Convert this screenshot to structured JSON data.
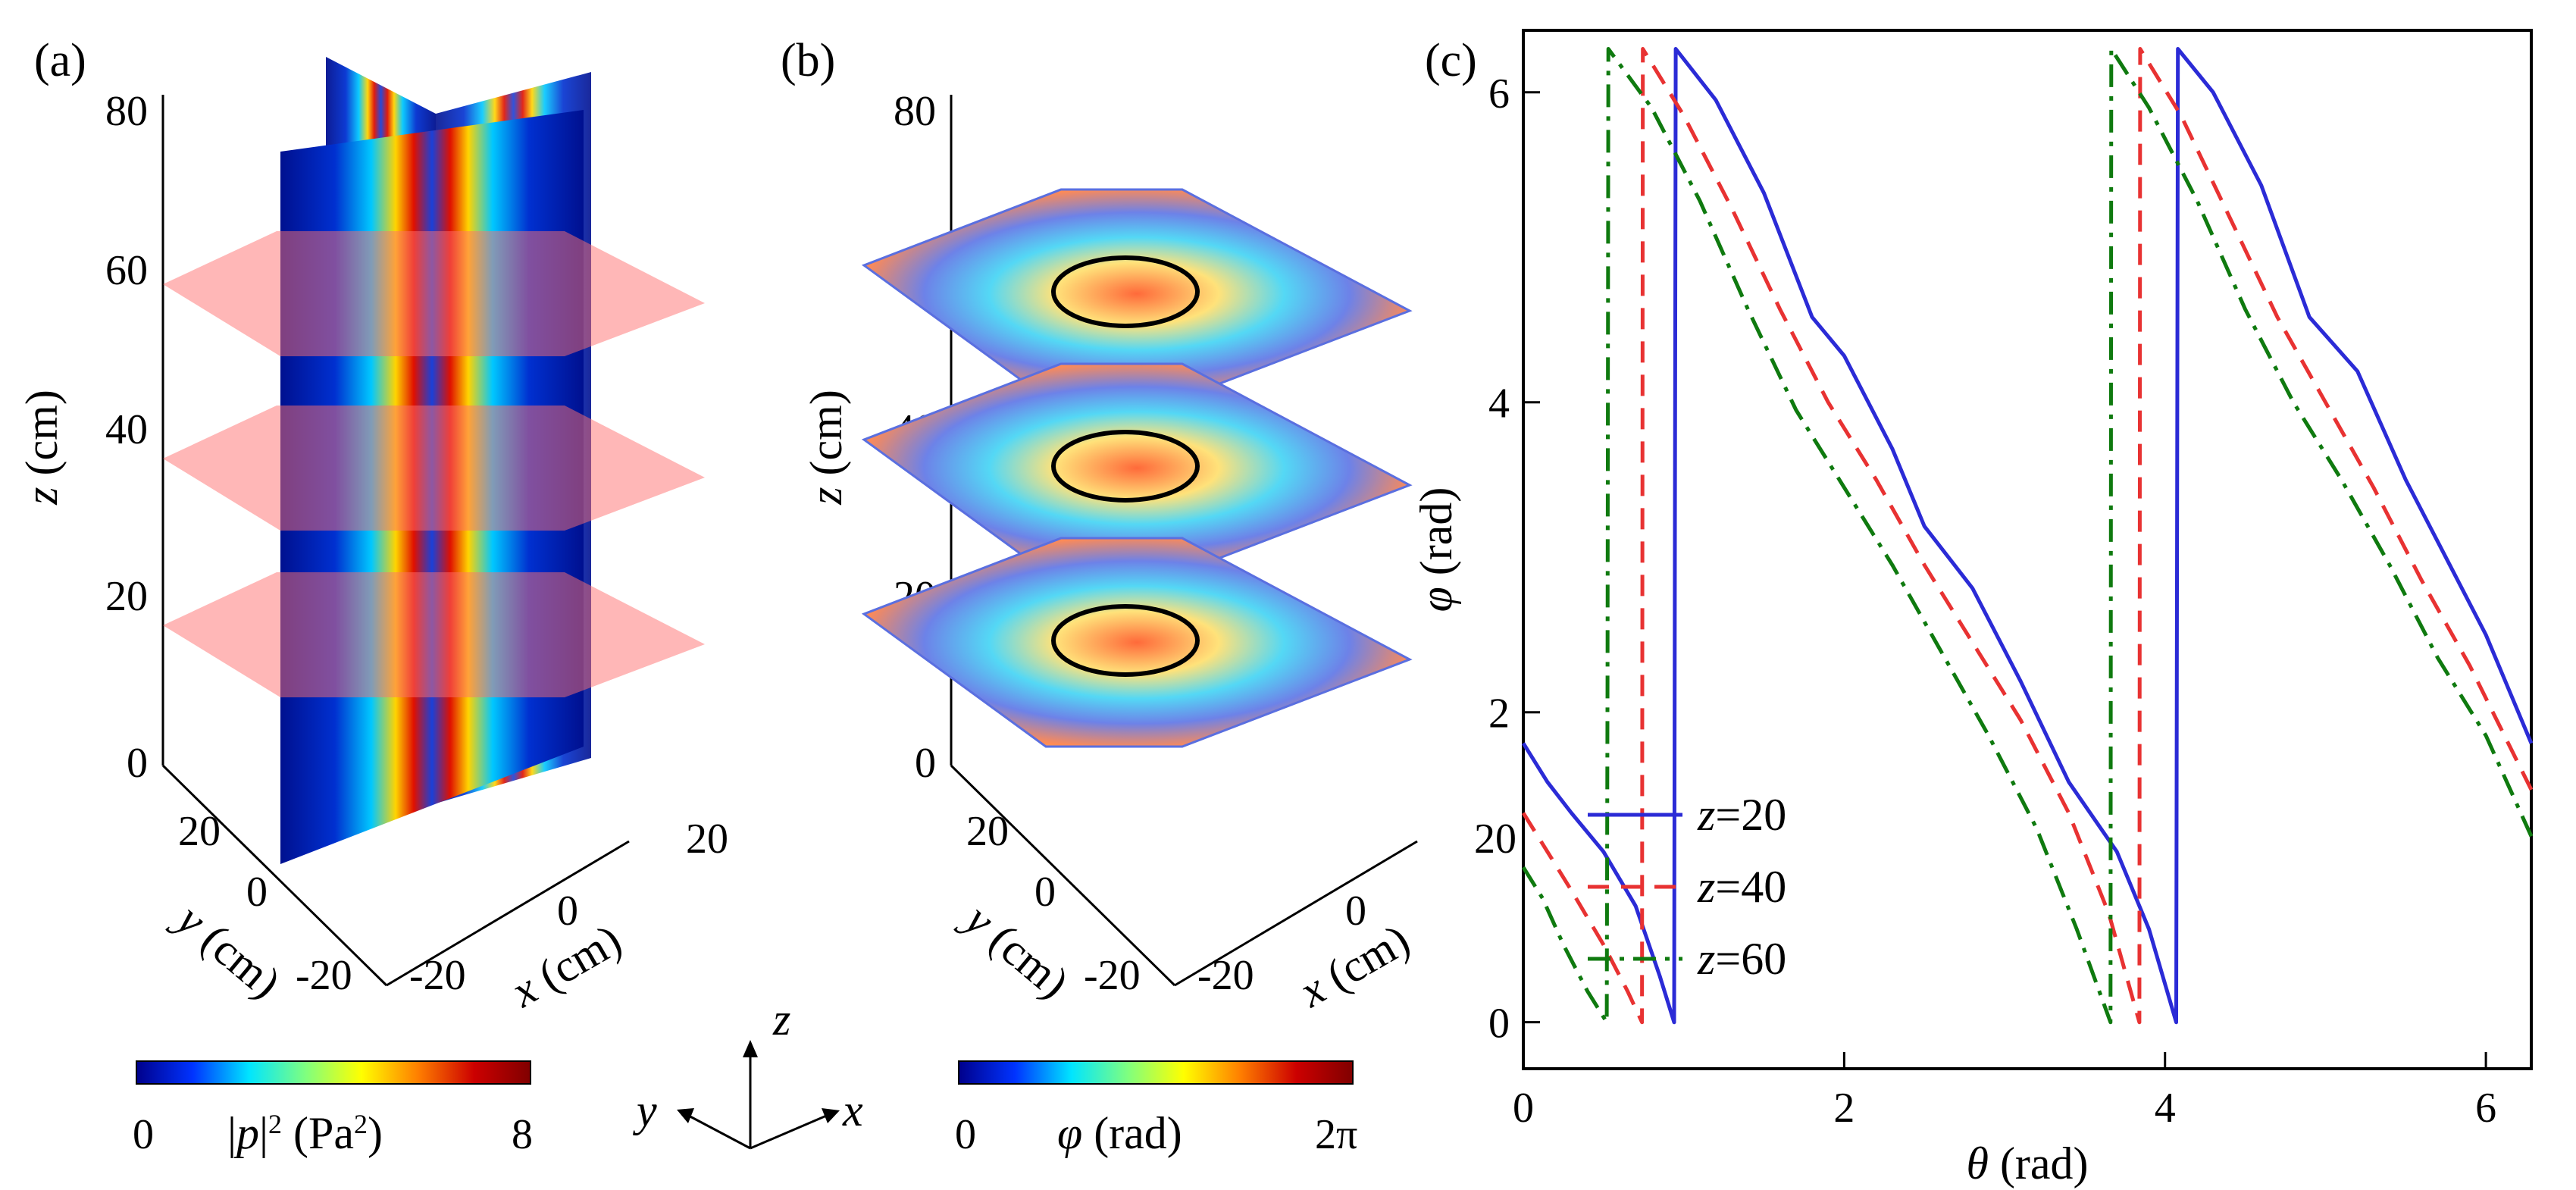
{
  "panels": {
    "a": {
      "label": "(a)",
      "z_axis": {
        "label_var": "z",
        "label_unit": " (cm)",
        "ticks": [
          "0",
          "20",
          "40",
          "60",
          "80"
        ]
      },
      "y_axis": {
        "label_var": "y",
        "label_unit": " (cm)",
        "ticks": [
          "20",
          "0",
          "-20"
        ]
      },
      "x_axis": {
        "label_var": "x",
        "label_unit": " (cm)",
        "ticks": [
          "-20",
          "0",
          "20"
        ]
      },
      "colorbar": {
        "min": "0",
        "max": "8",
        "label_prefix": "|",
        "label_var": "p",
        "label_suffix": "|",
        "label_sup": "2",
        "label_unit": " (Pa",
        "label_unit_sup": "2",
        "label_unit_close": ")",
        "stops": [
          "#00008b",
          "#0033ff",
          "#00e5ff",
          "#7fff7f",
          "#ffff00",
          "#ff7f00",
          "#cc0000",
          "#800000"
        ]
      }
    },
    "b": {
      "label": "(b)",
      "z_axis": {
        "label_var": "z",
        "label_unit": " (cm)",
        "ticks": [
          "0",
          "20",
          "40",
          "60",
          "80"
        ]
      },
      "y_axis": {
        "label_var": "y",
        "label_unit": " (cm)",
        "ticks": [
          "20",
          "0",
          "-20"
        ]
      },
      "x_axis": {
        "label_var": "x",
        "label_unit": " (cm)",
        "ticks": [
          "-20",
          "0",
          "20"
        ]
      },
      "colorbar": {
        "min": "0",
        "max": "2π",
        "label_var": "φ",
        "label_unit": " (rad)",
        "stops": [
          "#00008b",
          "#0033ff",
          "#00e5ff",
          "#7fff7f",
          "#ffff00",
          "#ff7f00",
          "#cc0000",
          "#800000"
        ]
      }
    },
    "axes_icon": {
      "x": "x",
      "y": "y",
      "z": "z"
    }
  },
  "chart_data": {
    "label": "(c)",
    "type": "line",
    "xlabel_var": "θ",
    "xlabel_unit": " (rad)",
    "ylabel_var": "φ",
    "ylabel_unit": " (rad)",
    "xlim": [
      0,
      6.283
    ],
    "ylim": [
      -0.3,
      6.4
    ],
    "xticks": [
      0,
      2,
      4,
      6
    ],
    "yticks": [
      0,
      2,
      4,
      6
    ],
    "grid": false,
    "legend": "lower-left",
    "series": [
      {
        "name_var": "z",
        "name_val": "=20",
        "color": "#2b2bd6",
        "dash": "solid",
        "points": [
          [
            0,
            1.8
          ],
          [
            0.15,
            1.55
          ],
          [
            0.3,
            1.35
          ],
          [
            0.5,
            1.1
          ],
          [
            0.7,
            0.75
          ],
          [
            0.85,
            0.3
          ],
          [
            0.94,
            0.0
          ],
          [
            0.945,
            3.1
          ],
          [
            0.95,
            6.28
          ],
          [
            1.2,
            5.95
          ],
          [
            1.5,
            5.35
          ],
          [
            1.8,
            4.55
          ],
          [
            2.0,
            4.3
          ],
          [
            2.3,
            3.7
          ],
          [
            2.5,
            3.2
          ],
          [
            2.8,
            2.8
          ],
          [
            3.1,
            2.2
          ],
          [
            3.4,
            1.55
          ],
          [
            3.7,
            1.1
          ],
          [
            3.9,
            0.6
          ],
          [
            4.07,
            0.0
          ],
          [
            4.075,
            3.1
          ],
          [
            4.08,
            6.28
          ],
          [
            4.3,
            6.0
          ],
          [
            4.6,
            5.4
          ],
          [
            4.9,
            4.55
          ],
          [
            5.2,
            4.2
          ],
          [
            5.5,
            3.5
          ],
          [
            5.8,
            2.9
          ],
          [
            6.0,
            2.5
          ],
          [
            6.283,
            1.8
          ]
        ]
      },
      {
        "name_var": "z",
        "name_val": "=40",
        "color": "#e83232",
        "dash": "dashed",
        "points": [
          [
            0,
            1.35
          ],
          [
            0.15,
            1.1
          ],
          [
            0.3,
            0.85
          ],
          [
            0.5,
            0.5
          ],
          [
            0.65,
            0.2
          ],
          [
            0.74,
            0.0
          ],
          [
            0.745,
            6.28
          ],
          [
            1.0,
            5.85
          ],
          [
            1.3,
            5.25
          ],
          [
            1.6,
            4.6
          ],
          [
            1.9,
            4.0
          ],
          [
            2.2,
            3.5
          ],
          [
            2.5,
            2.95
          ],
          [
            2.8,
            2.45
          ],
          [
            3.1,
            1.95
          ],
          [
            3.4,
            1.35
          ],
          [
            3.65,
            0.7
          ],
          [
            3.84,
            0.0
          ],
          [
            3.845,
            6.28
          ],
          [
            4.1,
            5.85
          ],
          [
            4.4,
            5.2
          ],
          [
            4.7,
            4.55
          ],
          [
            5.0,
            4.0
          ],
          [
            5.3,
            3.45
          ],
          [
            5.6,
            2.85
          ],
          [
            5.9,
            2.3
          ],
          [
            6.283,
            1.5
          ]
        ]
      },
      {
        "name_var": "z",
        "name_val": "=60",
        "color": "#0f7a0f",
        "dash": "dashdot",
        "points": [
          [
            0,
            1.0
          ],
          [
            0.12,
            0.8
          ],
          [
            0.25,
            0.5
          ],
          [
            0.4,
            0.2
          ],
          [
            0.52,
            0.0
          ],
          [
            0.525,
            2.2
          ],
          [
            0.53,
            6.28
          ],
          [
            0.8,
            5.9
          ],
          [
            1.1,
            5.3
          ],
          [
            1.4,
            4.6
          ],
          [
            1.7,
            3.95
          ],
          [
            2.0,
            3.45
          ],
          [
            2.3,
            2.95
          ],
          [
            2.6,
            2.4
          ],
          [
            2.9,
            1.85
          ],
          [
            3.2,
            1.25
          ],
          [
            3.45,
            0.6
          ],
          [
            3.66,
            0.0
          ],
          [
            3.665,
            6.28
          ],
          [
            3.9,
            5.9
          ],
          [
            4.2,
            5.3
          ],
          [
            4.5,
            4.6
          ],
          [
            4.8,
            4.0
          ],
          [
            5.1,
            3.5
          ],
          [
            5.4,
            2.95
          ],
          [
            5.7,
            2.35
          ],
          [
            6.0,
            1.85
          ],
          [
            6.283,
            1.2
          ]
        ]
      }
    ]
  }
}
